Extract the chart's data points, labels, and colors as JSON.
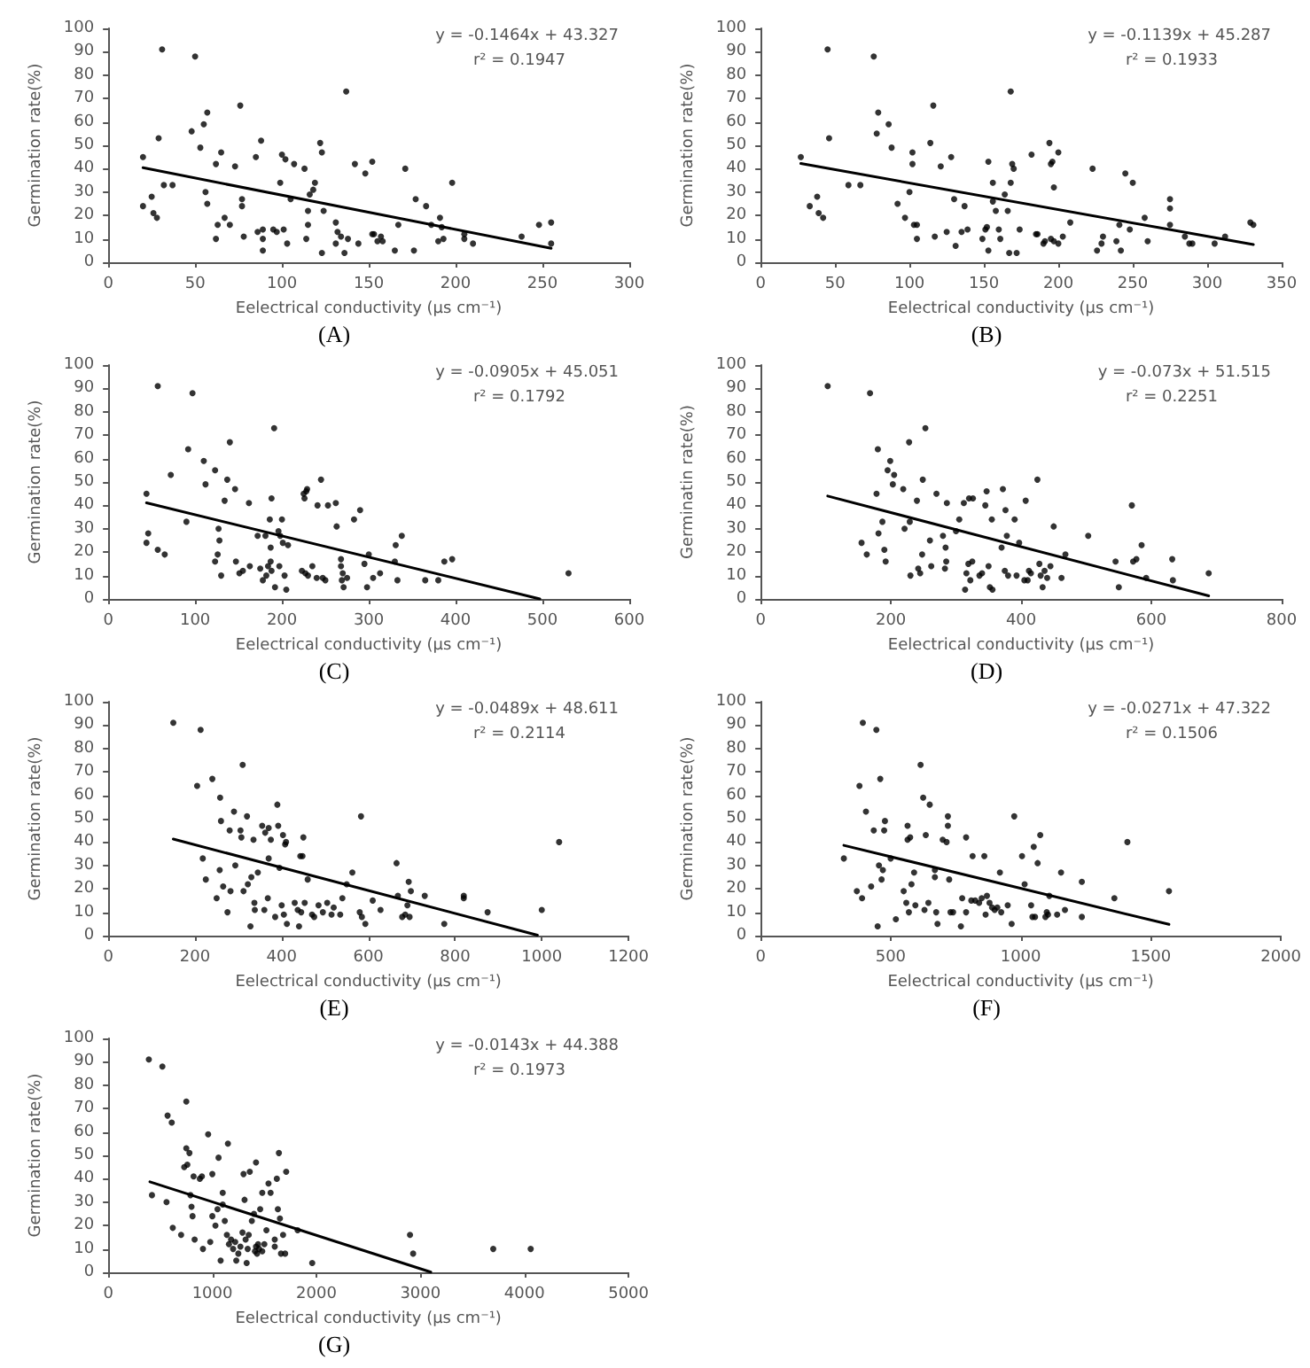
{
  "chart_data": [
    {
      "type": "scatter",
      "title": "(A)",
      "xlabel": "Eelectrical conductivity (μs cm⁻¹)",
      "ylabel": "Germination rate(%)",
      "annotations": [
        "y = -0.1464x + 43.327",
        "r² = 0.1947"
      ],
      "xlim": [
        0,
        300
      ],
      "xticks": [
        0,
        50,
        100,
        150,
        200,
        250,
        300
      ],
      "ylim": [
        0,
        100
      ],
      "yticks": [
        0,
        10,
        20,
        30,
        40,
        50,
        60,
        70,
        80,
        90,
        100
      ],
      "grid": false,
      "marker": "circle",
      "series": [
        {
          "color": "#000000",
          "x": [
            20,
            20,
            25,
            26,
            28,
            29,
            31,
            32,
            37,
            48,
            50,
            53,
            55,
            56,
            57,
            57,
            62,
            62,
            63,
            65,
            67,
            70,
            73,
            76,
            77,
            77,
            78,
            85,
            86,
            88,
            89,
            89,
            89,
            95,
            97,
            99,
            100,
            101,
            102,
            103,
            105,
            107,
            113,
            114,
            115,
            115,
            116,
            118,
            119,
            122,
            123,
            123,
            124,
            131,
            131,
            132,
            134,
            136,
            137,
            138,
            142,
            144,
            148,
            152,
            152,
            153,
            155,
            157,
            158,
            165,
            167,
            171,
            176,
            177,
            183,
            186,
            190,
            191,
            192,
            193,
            198,
            205,
            205,
            210,
            238,
            248,
            255,
            255
          ],
          "values": [
            45,
            24,
            28,
            21,
            19,
            53,
            91,
            33,
            33,
            56,
            88,
            49,
            59,
            30,
            64,
            25,
            42,
            10,
            16,
            47,
            19,
            16,
            41,
            67,
            24,
            27,
            11,
            45,
            13,
            52,
            14,
            10,
            5,
            14,
            13,
            34,
            46,
            14,
            44,
            8,
            27,
            42,
            40,
            10,
            22,
            16,
            29,
            31,
            34,
            51,
            47,
            4,
            22,
            17,
            8,
            13,
            11,
            4,
            73,
            10,
            42,
            8,
            38,
            43,
            12,
            12,
            9,
            11,
            9,
            5,
            16,
            40,
            5,
            27,
            24,
            16,
            9,
            19,
            15,
            10,
            34,
            10,
            12,
            8,
            11,
            16,
            17,
            8
          ]
        },
        {
          "type": "line",
          "marker": "none",
          "color": "#000000",
          "x": [
            20,
            255
          ],
          "values": [
            40.4,
            6.0
          ]
        }
      ]
    },
    {
      "type": "scatter",
      "title": "(B)",
      "xlabel": "Eelectrical conductivity (μs cm⁻¹)",
      "ylabel": "Germination rate(%)",
      "annotations": [
        "y = -0.1139x + 45.287",
        "r² = 0.1933"
      ],
      "xlim": [
        0,
        350
      ],
      "xticks": [
        0,
        50,
        100,
        150,
        200,
        250,
        300,
        350
      ],
      "ylim": [
        0,
        100
      ],
      "yticks": [
        0,
        10,
        20,
        30,
        40,
        50,
        60,
        70,
        80,
        90,
        100
      ],
      "grid": false,
      "marker": "circle",
      "series": [
        {
          "color": "#000000",
          "x": [
            27,
            33,
            38,
            39,
            42,
            45,
            46,
            59,
            67,
            76,
            78,
            79,
            86,
            88,
            92,
            97,
            100,
            102,
            102,
            103,
            105,
            105,
            114,
            116,
            117,
            121,
            125,
            128,
            130,
            131,
            135,
            137,
            139,
            149,
            151,
            152,
            153,
            153,
            156,
            156,
            158,
            160,
            161,
            164,
            166,
            167,
            168,
            168,
            169,
            170,
            172,
            174,
            182,
            185,
            186,
            190,
            191,
            194,
            195,
            195,
            196,
            197,
            197,
            200,
            200,
            203,
            208,
            223,
            226,
            229,
            230,
            239,
            241,
            242,
            245,
            248,
            250,
            258,
            260,
            275,
            275,
            275,
            285,
            288,
            290,
            305,
            312,
            329,
            331
          ],
          "values": [
            45,
            24,
            28,
            21,
            19,
            91,
            53,
            33,
            33,
            88,
            55,
            64,
            59,
            49,
            25,
            19,
            30,
            42,
            47,
            16,
            16,
            10,
            51,
            67,
            11,
            41,
            13,
            45,
            27,
            7,
            13,
            24,
            14,
            10,
            14,
            15,
            5,
            43,
            34,
            26,
            22,
            14,
            10,
            29,
            22,
            4,
            73,
            34,
            42,
            40,
            4,
            14,
            46,
            12,
            12,
            8,
            9,
            51,
            42,
            10,
            43,
            9,
            32,
            47,
            8,
            11,
            17,
            40,
            5,
            8,
            11,
            9,
            16,
            5,
            38,
            14,
            34,
            19,
            9,
            27,
            23,
            16,
            11,
            8,
            8,
            8,
            11,
            17,
            16
          ]
        },
        {
          "type": "line",
          "marker": "none",
          "color": "#000000",
          "x": [
            27,
            331
          ],
          "values": [
            42.2,
            7.6
          ]
        }
      ]
    },
    {
      "type": "scatter",
      "title": "(C)",
      "xlabel": "Eelectrical conductivity (μs cm⁻¹)",
      "ylabel": "Germination rate(%)",
      "annotations": [
        "y = -0.0905x + 45.051",
        "r² = 0.1792"
      ],
      "xlim": [
        0,
        600
      ],
      "xticks": [
        0,
        100,
        200,
        300,
        400,
        500,
        600
      ],
      "ylim": [
        0,
        100
      ],
      "yticks": [
        0,
        10,
        20,
        30,
        40,
        50,
        60,
        70,
        80,
        90,
        100
      ],
      "grid": false,
      "marker": "circle",
      "series": [
        {
          "color": "#000000",
          "x": [
            44,
            44,
            46,
            57,
            57,
            65,
            72,
            90,
            92,
            97,
            110,
            112,
            123,
            123,
            126,
            127,
            128,
            130,
            134,
            137,
            140,
            146,
            147,
            151,
            155,
            162,
            163,
            172,
            175,
            178,
            181,
            182,
            184,
            186,
            187,
            187,
            188,
            188,
            191,
            192,
            196,
            197,
            198,
            200,
            201,
            203,
            205,
            207,
            223,
            225,
            226,
            227,
            228,
            229,
            230,
            235,
            240,
            241,
            245,
            247,
            250,
            253,
            262,
            263,
            268,
            268,
            269,
            270,
            271,
            275,
            283,
            290,
            295,
            298,
            300,
            305,
            313,
            330,
            331,
            333,
            338,
            365,
            380,
            387,
            396,
            530
          ],
          "values": [
            45,
            24,
            28,
            21,
            91,
            19,
            53,
            33,
            64,
            88,
            59,
            49,
            55,
            16,
            19,
            30,
            25,
            10,
            42,
            51,
            67,
            47,
            16,
            11,
            12,
            41,
            14,
            27,
            13,
            8,
            27,
            10,
            14,
            34,
            16,
            22,
            43,
            12,
            73,
            5,
            29,
            14,
            27,
            34,
            24,
            10,
            4,
            23,
            12,
            45,
            43,
            11,
            46,
            47,
            10,
            14,
            9,
            40,
            51,
            9,
            8,
            40,
            41,
            31,
            17,
            14,
            8,
            11,
            5,
            9,
            34,
            38,
            15,
            5,
            19,
            9,
            11,
            16,
            23,
            8,
            27,
            8,
            8,
            16,
            17,
            11
          ]
        },
        {
          "type": "line",
          "marker": "none",
          "color": "#000000",
          "x": [
            44,
            497
          ],
          "values": [
            41.1,
            0
          ]
        }
      ]
    },
    {
      "type": "scatter",
      "title": "(D)",
      "xlabel": "Eelectrical conductivity (μs cm⁻¹)",
      "ylabel": "Germinatin rate(%)",
      "annotations": [
        "y = -0.073x + 51.515",
        "r² = 0.2251"
      ],
      "xlim": [
        0,
        800
      ],
      "xticks": [
        0,
        200,
        400,
        600,
        800
      ],
      "ylim": [
        0,
        100
      ],
      "yticks": [
        0,
        10,
        20,
        30,
        40,
        50,
        60,
        70,
        80,
        90,
        100
      ],
      "grid": false,
      "marker": "circle",
      "series": [
        {
          "color": "#000000",
          "x": [
            103,
            155,
            163,
            168,
            178,
            180,
            181,
            187,
            190,
            192,
            195,
            199,
            203,
            205,
            219,
            221,
            228,
            229,
            230,
            240,
            242,
            245,
            248,
            249,
            253,
            260,
            262,
            270,
            280,
            283,
            284,
            285,
            286,
            300,
            305,
            312,
            314,
            316,
            319,
            320,
            322,
            325,
            326,
            336,
            340,
            345,
            347,
            350,
            352,
            355,
            356,
            370,
            372,
            375,
            376,
            378,
            380,
            390,
            393,
            397,
            405,
            407,
            410,
            412,
            415,
            425,
            428,
            430,
            433,
            436,
            440,
            445,
            450,
            462,
            468,
            503,
            545,
            550,
            570,
            572,
            577,
            585,
            592,
            632,
            633,
            688
          ],
          "values": [
            91,
            24,
            19,
            88,
            45,
            64,
            28,
            33,
            21,
            16,
            55,
            59,
            49,
            53,
            47,
            30,
            67,
            33,
            10,
            42,
            13,
            11,
            19,
            51,
            73,
            25,
            14,
            45,
            27,
            13,
            22,
            16,
            41,
            29,
            34,
            41,
            4,
            11,
            15,
            43,
            8,
            16,
            43,
            10,
            11,
            40,
            46,
            14,
            5,
            34,
            4,
            22,
            47,
            12,
            38,
            27,
            10,
            34,
            10,
            24,
            8,
            42,
            8,
            12,
            11,
            51,
            15,
            10,
            5,
            12,
            9,
            14,
            31,
            9,
            19,
            27,
            16,
            5,
            40,
            16,
            17,
            23,
            9,
            17,
            8,
            11
          ]
        },
        {
          "type": "line",
          "marker": "none",
          "color": "#000000",
          "x": [
            103,
            688
          ],
          "values": [
            44.0,
            1.3
          ]
        }
      ]
    },
    {
      "type": "scatter",
      "title": "(E)",
      "xlabel": "Eelectrical conductivity (μs cm⁻¹)",
      "ylabel": "Germination rate(%)",
      "annotations": [
        "y = -0.0489x + 48.611",
        "r² = 0.2114"
      ],
      "xlim": [
        0,
        1200
      ],
      "xticks": [
        0,
        200,
        400,
        600,
        800,
        1000,
        1200
      ],
      "ylim": [
        0,
        100
      ],
      "yticks": [
        0,
        10,
        20,
        30,
        40,
        50,
        60,
        70,
        80,
        90,
        100
      ],
      "grid": false,
      "marker": "circle",
      "series": [
        {
          "color": "#000000",
          "x": [
            150,
            205,
            213,
            218,
            225,
            240,
            250,
            257,
            258,
            260,
            265,
            275,
            280,
            282,
            290,
            293,
            305,
            307,
            310,
            312,
            320,
            322,
            328,
            330,
            335,
            337,
            338,
            345,
            355,
            360,
            362,
            368,
            370,
            370,
            375,
            385,
            390,
            392,
            395,
            400,
            403,
            405,
            408,
            410,
            412,
            430,
            437,
            440,
            443,
            445,
            448,
            450,
            453,
            460,
            470,
            475,
            485,
            495,
            505,
            515,
            520,
            535,
            540,
            550,
            563,
            580,
            583,
            585,
            593,
            610,
            628,
            665,
            668,
            678,
            685,
            690,
            693,
            695,
            698,
            730,
            775,
            820,
            820,
            875,
            1000,
            1040
          ],
          "values": [
            91,
            64,
            88,
            33,
            24,
            67,
            16,
            28,
            59,
            49,
            21,
            10,
            45,
            19,
            53,
            30,
            45,
            42,
            73,
            19,
            51,
            22,
            4,
            25,
            41,
            14,
            11,
            27,
            47,
            11,
            44,
            16,
            46,
            33,
            41,
            8,
            56,
            47,
            29,
            13,
            43,
            9,
            39,
            40,
            5,
            14,
            11,
            4,
            34,
            10,
            34,
            42,
            14,
            24,
            9,
            8,
            13,
            10,
            14,
            9,
            12,
            9,
            16,
            22,
            27,
            10,
            51,
            8,
            5,
            15,
            11,
            31,
            17,
            8,
            9,
            13,
            23,
            8,
            19,
            17,
            5,
            17,
            16,
            10,
            11,
            40
          ]
        },
        {
          "type": "line",
          "marker": "none",
          "color": "#000000",
          "x": [
            150,
            990
          ],
          "values": [
            41.3,
            0.2
          ]
        }
      ]
    },
    {
      "type": "scatter",
      "title": "(F)",
      "xlabel": "Eelectrical conductivity (μs cm⁻¹)",
      "ylabel": "Germination rate(%)",
      "annotations": [
        "y = -0.0271x + 47.322",
        "r² = 0.1506"
      ],
      "xlim": [
        0,
        2000
      ],
      "xticks": [
        0,
        500,
        1000,
        1500,
        2000
      ],
      "ylim": [
        0,
        100
      ],
      "yticks": [
        0,
        10,
        20,
        30,
        40,
        50,
        60,
        70,
        80,
        90,
        100
      ],
      "grid": false,
      "marker": "circle",
      "series": [
        {
          "color": "#000000",
          "x": [
            320,
            370,
            380,
            390,
            393,
            405,
            425,
            435,
            445,
            450,
            455,
            460,
            465,
            470,
            475,
            478,
            500,
            520,
            550,
            560,
            565,
            565,
            570,
            575,
            580,
            590,
            595,
            615,
            625,
            630,
            635,
            645,
            650,
            670,
            670,
            675,
            680,
            700,
            715,
            720,
            720,
            725,
            730,
            740,
            770,
            775,
            790,
            790,
            810,
            815,
            825,
            840,
            850,
            860,
            865,
            870,
            880,
            890,
            900,
            910,
            920,
            925,
            950,
            965,
            975,
            1005,
            1015,
            1040,
            1045,
            1050,
            1055,
            1065,
            1075,
            1095,
            1100,
            1105,
            1110,
            1140,
            1155,
            1170,
            1235,
            1235,
            1360,
            1410,
            1570
          ],
          "values": [
            33,
            19,
            64,
            16,
            91,
            53,
            21,
            45,
            88,
            4,
            30,
            67,
            24,
            28,
            45,
            49,
            33,
            7,
            19,
            14,
            47,
            41,
            10,
            42,
            22,
            27,
            13,
            73,
            59,
            11,
            43,
            14,
            56,
            28,
            25,
            10,
            5,
            41,
            40,
            51,
            47,
            24,
            10,
            10,
            4,
            16,
            42,
            10,
            15,
            34,
            15,
            14,
            16,
            34,
            9,
            17,
            14,
            12,
            11,
            12,
            27,
            10,
            13,
            5,
            51,
            34,
            22,
            13,
            8,
            38,
            8,
            31,
            43,
            8,
            10,
            9,
            17,
            9,
            27,
            11,
            23,
            8,
            16,
            40,
            19
          ]
        },
        {
          "type": "line",
          "marker": "none",
          "color": "#000000",
          "x": [
            320,
            1570
          ],
          "values": [
            38.6,
            4.8
          ]
        }
      ]
    },
    {
      "type": "scatter",
      "title": "(G)",
      "xlabel": "Eelectrical conductivity (μs cm⁻¹)",
      "ylabel": "Germination rate(%)",
      "annotations": [
        "y = -0.0143x + 44.388",
        "r² = 0.1973"
      ],
      "xlim": [
        0,
        5000
      ],
      "xticks": [
        0,
        1000,
        2000,
        3000,
        4000,
        5000
      ],
      "ylim": [
        0,
        100
      ],
      "yticks": [
        0,
        10,
        20,
        30,
        40,
        50,
        60,
        70,
        80,
        90,
        100
      ],
      "grid": false,
      "marker": "circle",
      "series": [
        {
          "color": "#000000",
          "x": [
            390,
            420,
            520,
            560,
            570,
            610,
            620,
            700,
            730,
            750,
            750,
            760,
            780,
            790,
            800,
            810,
            820,
            830,
            880,
            900,
            910,
            960,
            980,
            1000,
            1000,
            1030,
            1050,
            1060,
            1080,
            1100,
            1100,
            1120,
            1140,
            1150,
            1160,
            1180,
            1200,
            1220,
            1230,
            1250,
            1270,
            1290,
            1300,
            1310,
            1320,
            1330,
            1340,
            1350,
            1360,
            1380,
            1400,
            1410,
            1420,
            1420,
            1430,
            1440,
            1450,
            1460,
            1480,
            1480,
            1500,
            1520,
            1540,
            1560,
            1600,
            1600,
            1620,
            1630,
            1640,
            1650,
            1660,
            1680,
            1700,
            1710,
            1820,
            1960,
            2900,
            2930,
            3700,
            4060
          ],
          "values": [
            91,
            33,
            88,
            30,
            67,
            64,
            19,
            16,
            45,
            53,
            73,
            46,
            51,
            33,
            28,
            24,
            41,
            14,
            40,
            41,
            10,
            59,
            13,
            42,
            24,
            20,
            27,
            49,
            5,
            29,
            34,
            22,
            16,
            55,
            12,
            14,
            10,
            13,
            5,
            8,
            11,
            17,
            42,
            31,
            14,
            4,
            10,
            16,
            43,
            22,
            25,
            9,
            47,
            11,
            8,
            12,
            10,
            27,
            34,
            9,
            12,
            18,
            38,
            34,
            14,
            11,
            40,
            27,
            51,
            23,
            8,
            16,
            8,
            43,
            18,
            4,
            16,
            8,
            10,
            10
          ]
        },
        {
          "type": "line",
          "marker": "none",
          "color": "#000000",
          "x": [
            400,
            3100
          ],
          "values": [
            38.7,
            0.1
          ]
        }
      ]
    }
  ]
}
